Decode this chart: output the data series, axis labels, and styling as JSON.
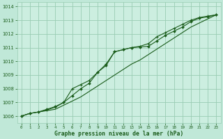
{
  "title": "Graphe pression niveau de la mer (hPa)",
  "background_color": "#c0e8d8",
  "plot_bg_color": "#cceee0",
  "grid_color": "#99ccb3",
  "line_color": "#1a5c1a",
  "xlim": [
    -0.5,
    23.5
  ],
  "ylim": [
    1005.5,
    1014.3
  ],
  "xticks": [
    0,
    1,
    2,
    3,
    4,
    5,
    6,
    7,
    8,
    9,
    10,
    11,
    12,
    13,
    14,
    15,
    16,
    17,
    18,
    19,
    20,
    21,
    22,
    23
  ],
  "yticks": [
    1006,
    1007,
    1008,
    1009,
    1010,
    1011,
    1012,
    1013,
    1014
  ],
  "series1_x": [
    0,
    1,
    2,
    3,
    4,
    5,
    6,
    7,
    8,
    9,
    10,
    11,
    12,
    13,
    14,
    15,
    16,
    17,
    18,
    19,
    20,
    21,
    22,
    23
  ],
  "series1_y": [
    1006.0,
    1006.2,
    1006.3,
    1006.4,
    1006.5,
    1006.8,
    1007.1,
    1007.4,
    1007.8,
    1008.2,
    1008.6,
    1009.0,
    1009.4,
    1009.8,
    1010.1,
    1010.5,
    1010.9,
    1011.3,
    1011.7,
    1012.1,
    1012.5,
    1012.8,
    1013.1,
    1013.4
  ],
  "series2_x": [
    0,
    1,
    2,
    3,
    4,
    5,
    6,
    7,
    8,
    9,
    10,
    11,
    12,
    13,
    14,
    15,
    16,
    17,
    18,
    19,
    20,
    21,
    22,
    23
  ],
  "series2_y": [
    1006.0,
    1006.2,
    1006.3,
    1006.5,
    1006.7,
    1007.0,
    1007.5,
    1008.0,
    1008.4,
    1009.2,
    1009.7,
    1010.7,
    1010.85,
    1011.0,
    1011.05,
    1011.1,
    1011.5,
    1011.9,
    1012.2,
    1012.5,
    1012.9,
    1013.15,
    1013.25,
    1013.4
  ],
  "series3_x": [
    0,
    1,
    2,
    3,
    4,
    5,
    6,
    7,
    8,
    9,
    10,
    11,
    12,
    13,
    14,
    15,
    16,
    17,
    18,
    19,
    20,
    21,
    22,
    23
  ],
  "series3_y": [
    1006.0,
    1006.2,
    1006.3,
    1006.45,
    1006.65,
    1007.0,
    1008.0,
    1008.3,
    1008.6,
    1009.2,
    1009.8,
    1010.7,
    1010.85,
    1011.0,
    1011.1,
    1011.3,
    1011.8,
    1012.1,
    1012.4,
    1012.7,
    1013.0,
    1013.2,
    1013.3,
    1013.4
  ]
}
